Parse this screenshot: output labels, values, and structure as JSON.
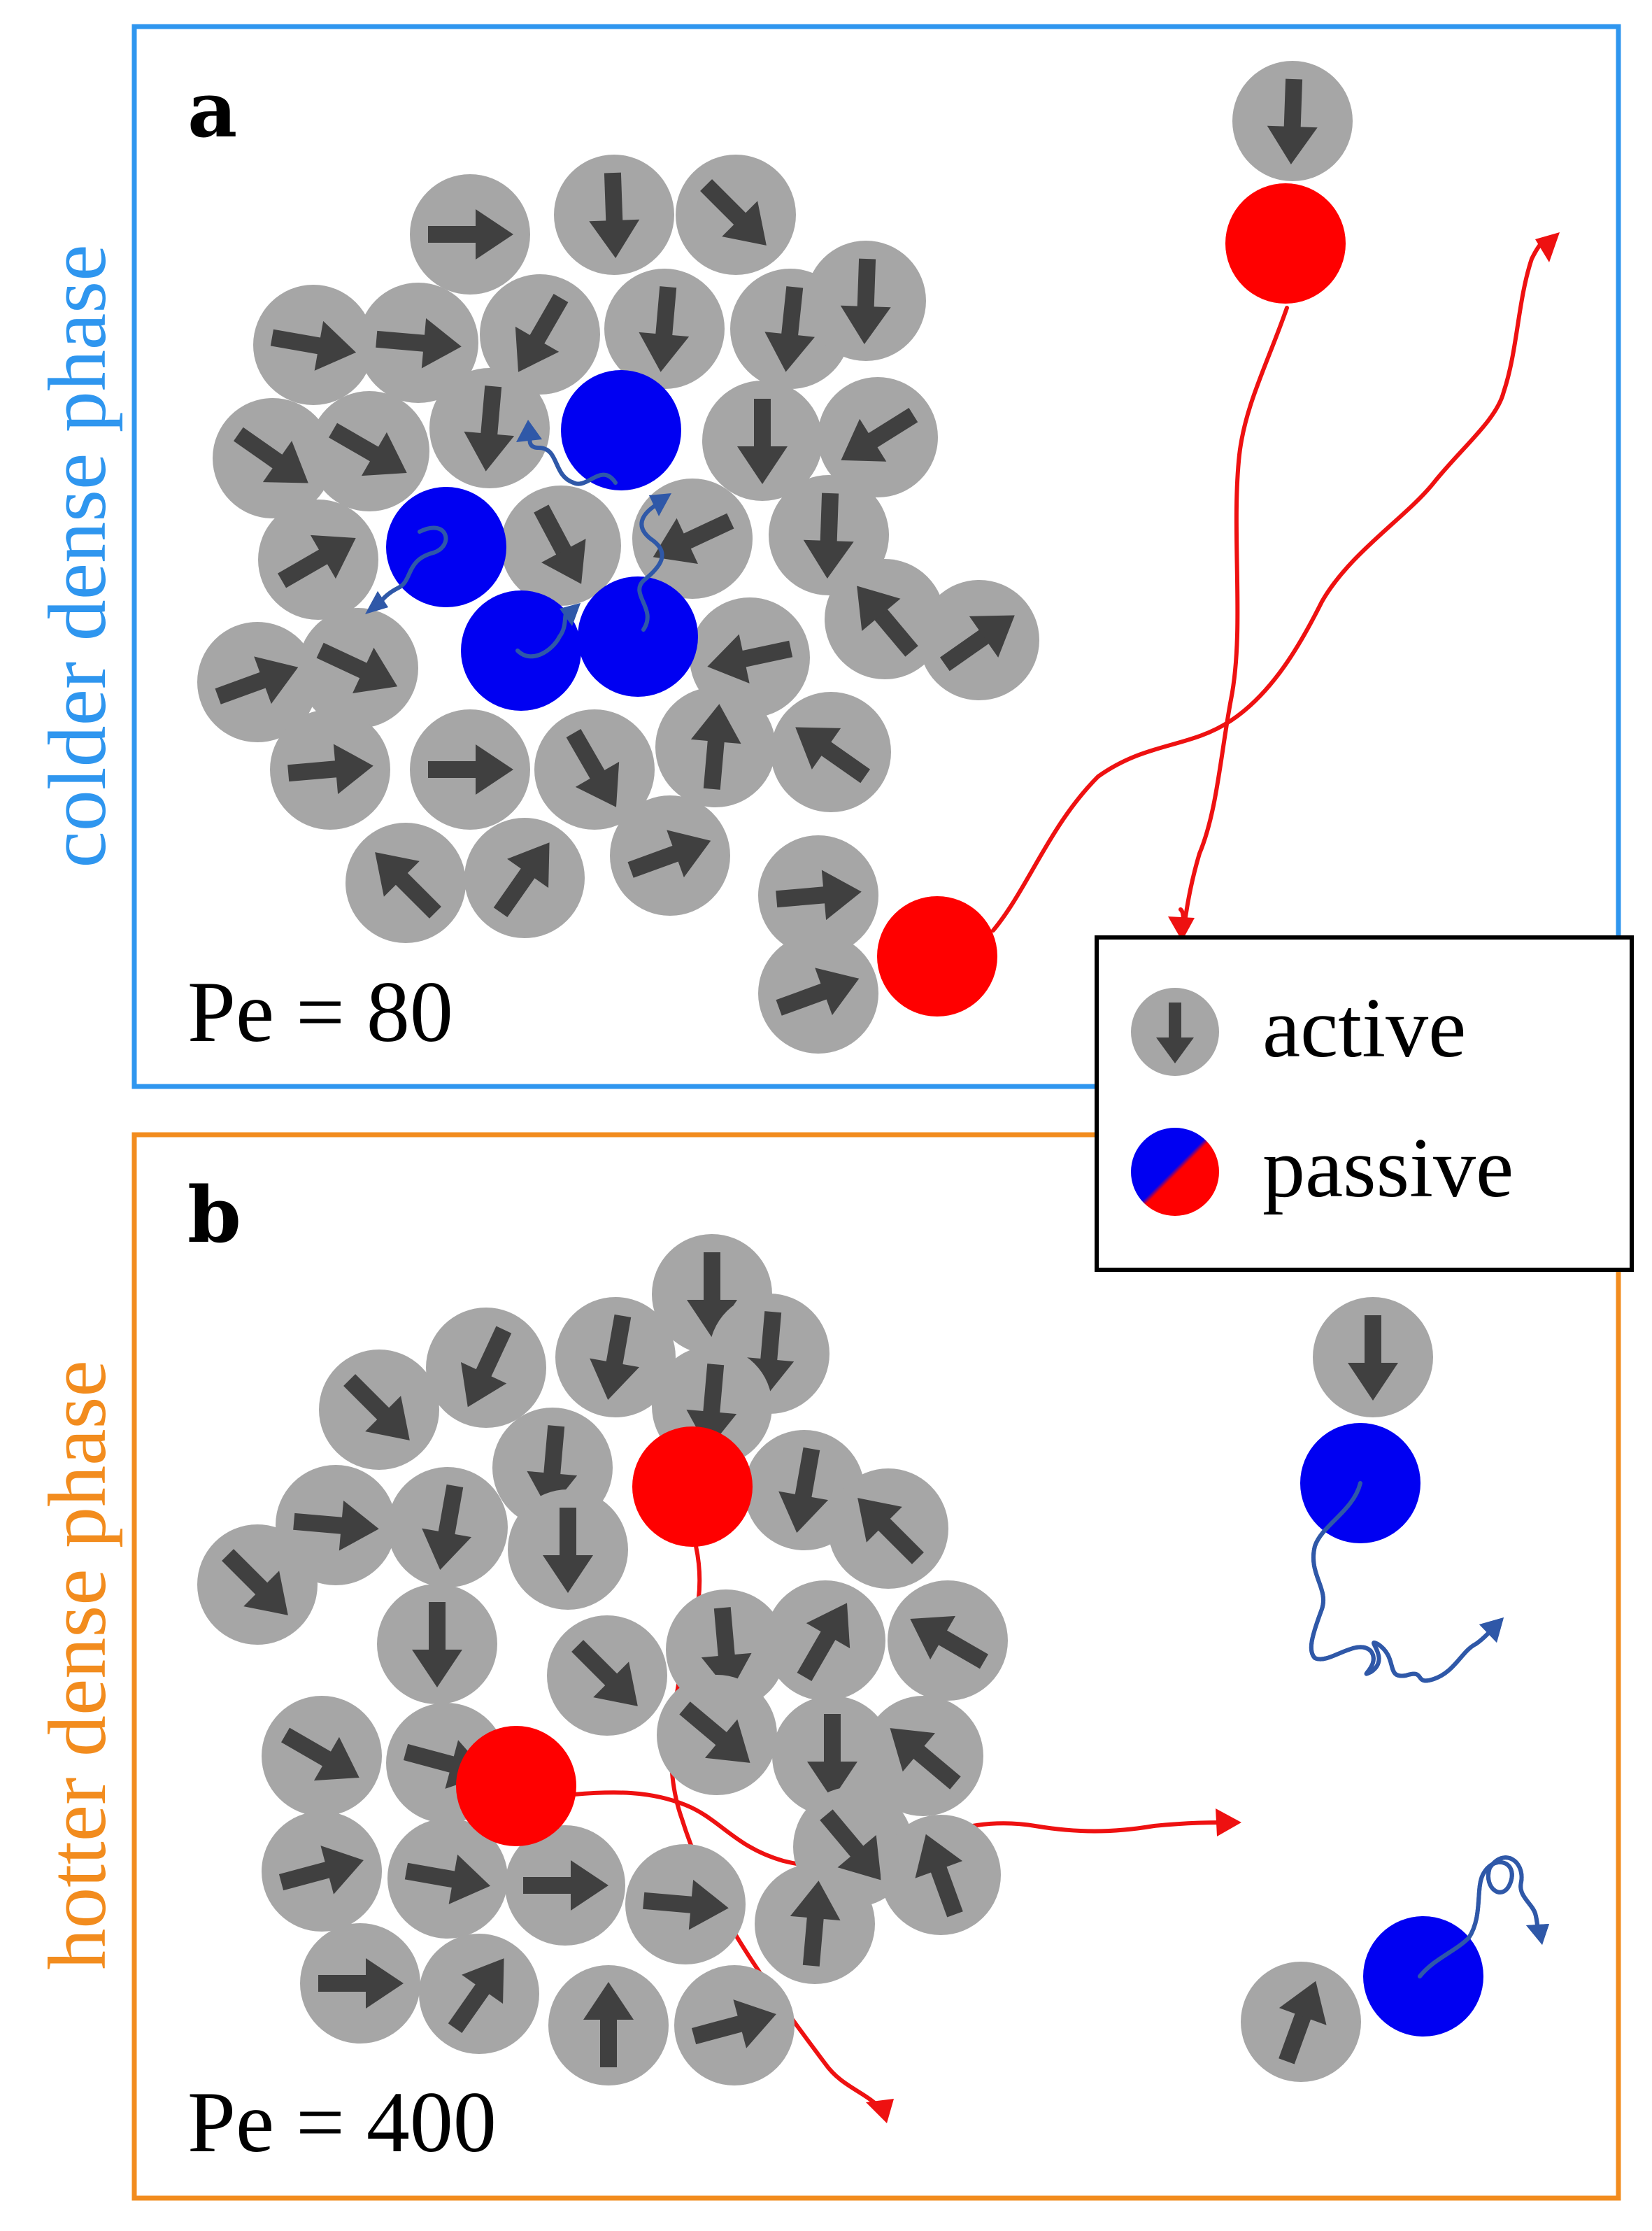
{
  "colors": {
    "panel_a_border": "#2f96ef",
    "panel_b_border": "#f28c1e",
    "active_particle": "#a6a6a6",
    "arrow": "#404040",
    "passive_blue": "#0000f2",
    "passive_red": "#ff0000",
    "trajectory_blue": "#2f58a8",
    "trajectory_red": "#ee1111"
  },
  "panel_a": {
    "label": "a",
    "side_label": "colder dense phase",
    "pe_label": "Pe = 80"
  },
  "panel_b": {
    "label": "b",
    "side_label": "hotter dense phase",
    "pe_label": "Pe = 400"
  },
  "legend": {
    "active_label": "active",
    "passive_label": "passive"
  }
}
